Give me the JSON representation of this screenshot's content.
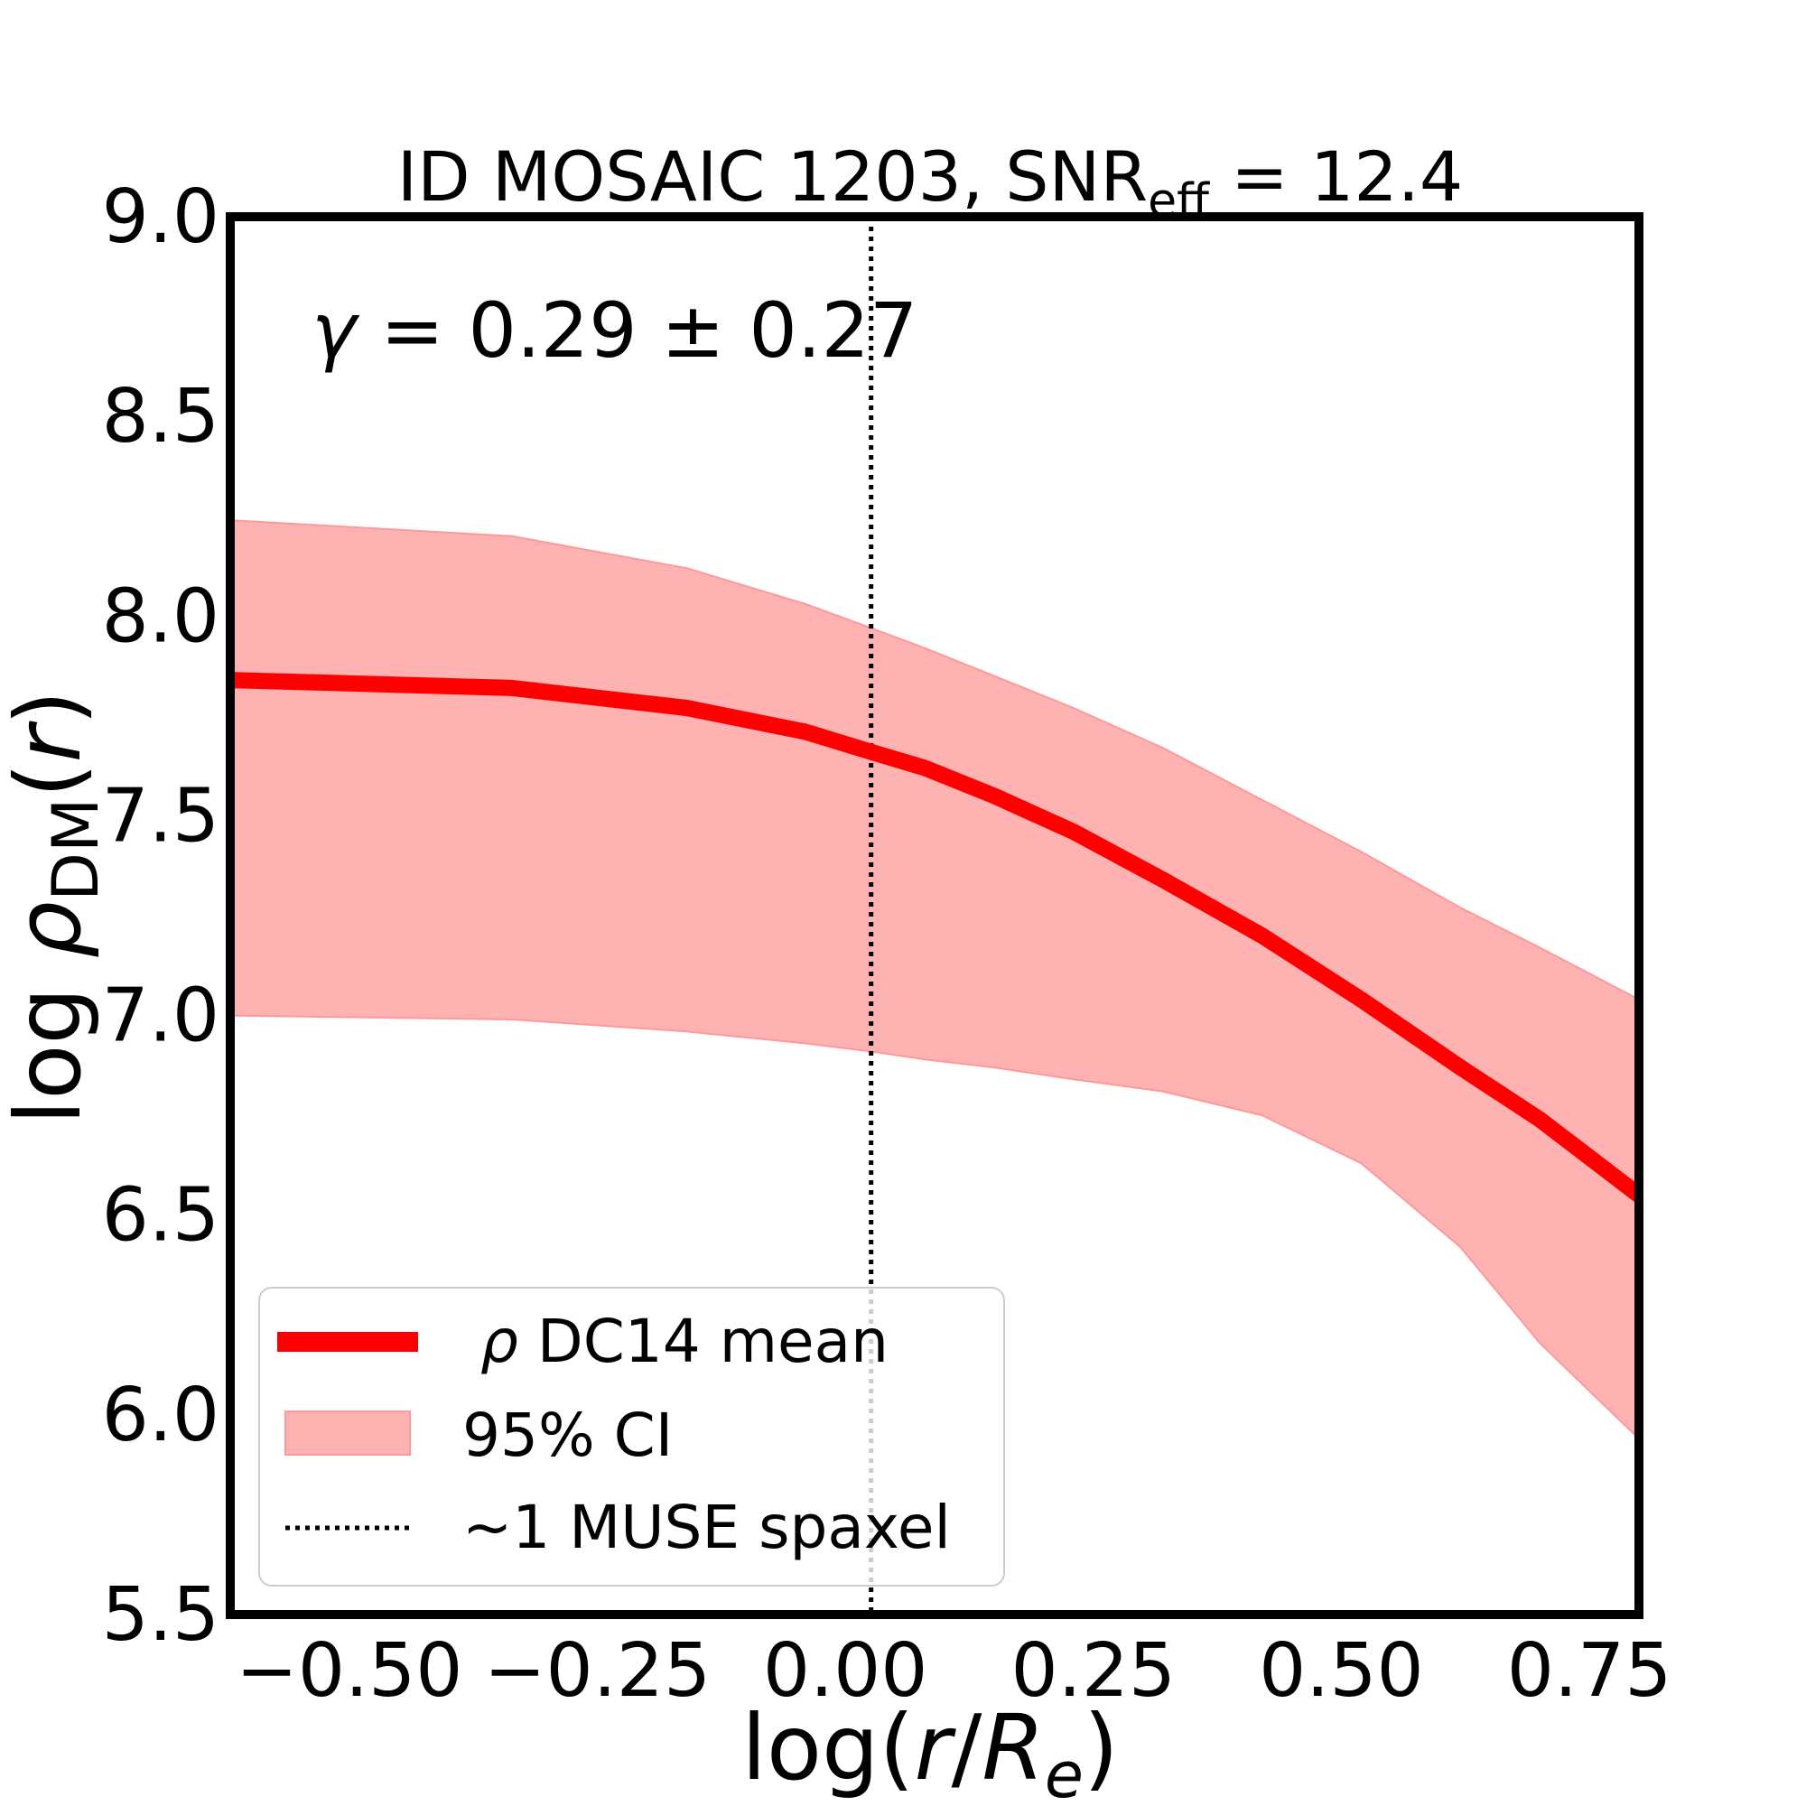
{
  "chart_data": {
    "type": "line",
    "title_main": "ID MOSAIC 1203, SNR",
    "title_sub": "eff",
    "title_value": " = 12.4",
    "xlabel_prefix": "log(",
    "xlabel_r": "r",
    "xlabel_slash": "/",
    "xlabel_R": "R",
    "xlabel_sub": "e",
    "xlabel_suffix": ")",
    "ylabel_log": "log",
    "ylabel_rho": "ρ",
    "ylabel_sub": "DM",
    "ylabel_open": "(",
    "ylabel_r": "r",
    "ylabel_close": ")",
    "xlim": [
      -0.62,
      0.8
    ],
    "ylim": [
      5.5,
      9.0
    ],
    "xticks": [
      -0.5,
      -0.25,
      0.0,
      0.25,
      0.5,
      0.75
    ],
    "xtick_labels": [
      "−0.50",
      "−0.25",
      "0.00",
      "0.25",
      "0.50",
      "0.75"
    ],
    "yticks": [
      5.5,
      6.0,
      6.5,
      7.0,
      7.5,
      8.0,
      8.5,
      9.0
    ],
    "ytick_labels": [
      "5.5",
      "6.0",
      "6.5",
      "7.0",
      "7.5",
      "8.0",
      "8.5",
      "9.0"
    ],
    "vline_x": 0.026,
    "annotation_gamma": "γ",
    "annotation_text": " = 0.29 ± 0.27",
    "series": [
      {
        "name": "ρ DC14 mean",
        "color": "#ff0000",
        "x": [
          -0.62,
          -0.336,
          -0.16,
          -0.04,
          0.026,
          0.08,
          0.15,
          0.23,
          0.32,
          0.42,
          0.52,
          0.62,
          0.7,
          0.8
        ],
        "y": [
          7.84,
          7.82,
          7.77,
          7.71,
          7.66,
          7.62,
          7.55,
          7.46,
          7.34,
          7.2,
          7.04,
          6.87,
          6.74,
          6.55
        ]
      }
    ],
    "band": {
      "name": "95% CI",
      "color": "#ff6666",
      "opacity": 0.5,
      "x": [
        -0.62,
        -0.336,
        -0.16,
        -0.04,
        0.026,
        0.08,
        0.15,
        0.23,
        0.32,
        0.42,
        0.52,
        0.62,
        0.7,
        0.8
      ],
      "upper": [
        8.24,
        8.2,
        8.12,
        8.03,
        7.97,
        7.92,
        7.85,
        7.77,
        7.67,
        7.54,
        7.41,
        7.27,
        7.17,
        7.04
      ],
      "lower": [
        7.0,
        6.99,
        6.96,
        6.93,
        6.91,
        6.89,
        6.87,
        6.84,
        6.81,
        6.75,
        6.63,
        6.42,
        6.18,
        5.94
      ]
    },
    "legend": {
      "position": "lower-left",
      "entries": [
        {
          "rho": "ρ",
          "label": " DC14 mean"
        },
        {
          "label": "95% CI"
        },
        {
          "label": "~1 MUSE spaxel"
        }
      ]
    }
  }
}
